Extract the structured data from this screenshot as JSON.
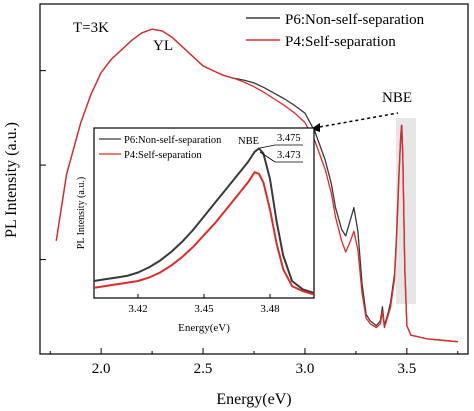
{
  "chart_data": [
    {
      "type": "line",
      "xlabel": "Energy(eV)",
      "ylabel": "PL Intensity (a.u.)",
      "xlim": [
        1.7,
        3.8
      ],
      "y_scale": "log",
      "ylim_decades": [
        0,
        3.6
      ],
      "x_ticks": [
        "2.0",
        "2.5",
        "3.0",
        "3.5"
      ],
      "annotations": {
        "temp": "T=3K",
        "yl": "YL",
        "nbe": "NBE"
      },
      "legend_position": "top-right",
      "series": [
        {
          "name": "P6:Non-self-separation",
          "color": "#3a3a3a",
          "x": [
            1.78,
            1.83,
            1.9,
            1.95,
            2.0,
            2.05,
            2.1,
            2.15,
            2.2,
            2.25,
            2.3,
            2.35,
            2.4,
            2.45,
            2.5,
            2.55,
            2.6,
            2.65,
            2.7,
            2.75,
            2.8,
            2.85,
            2.9,
            2.95,
            3.0,
            3.05,
            3.1,
            3.13,
            3.15,
            3.18,
            3.2,
            3.22,
            3.24,
            3.26,
            3.28,
            3.3,
            3.32,
            3.35,
            3.37,
            3.38,
            3.39,
            3.41,
            3.42,
            3.44,
            3.45,
            3.46,
            3.47,
            3.475,
            3.48,
            3.49,
            3.5,
            3.52,
            3.56,
            3.6,
            3.65,
            3.7,
            3.75
          ],
          "y": [
            1.2,
            1.9,
            2.45,
            2.75,
            2.98,
            3.12,
            3.22,
            3.32,
            3.4,
            3.44,
            3.42,
            3.35,
            3.25,
            3.15,
            3.05,
            3.0,
            2.95,
            2.92,
            2.9,
            2.87,
            2.82,
            2.76,
            2.7,
            2.63,
            2.55,
            2.35,
            2.05,
            1.8,
            1.55,
            1.32,
            1.25,
            1.4,
            1.55,
            1.3,
            0.75,
            0.42,
            0.35,
            0.3,
            0.35,
            0.5,
            0.3,
            0.45,
            0.55,
            0.85,
            1.3,
            1.85,
            2.3,
            2.42,
            2.1,
            0.9,
            0.3,
            0.2,
            0.18,
            0.16,
            0.15,
            0.14,
            0.13
          ]
        },
        {
          "name": "P4:Self-separation",
          "color": "#e02a2a",
          "x": [
            1.78,
            1.83,
            1.9,
            1.95,
            2.0,
            2.05,
            2.1,
            2.15,
            2.2,
            2.25,
            2.3,
            2.35,
            2.4,
            2.45,
            2.5,
            2.55,
            2.6,
            2.65,
            2.7,
            2.75,
            2.8,
            2.85,
            2.9,
            2.95,
            3.0,
            3.05,
            3.1,
            3.13,
            3.15,
            3.18,
            3.2,
            3.22,
            3.24,
            3.26,
            3.28,
            3.3,
            3.32,
            3.35,
            3.37,
            3.38,
            3.39,
            3.41,
            3.42,
            3.44,
            3.45,
            3.46,
            3.47,
            3.473,
            3.48,
            3.49,
            3.5,
            3.52,
            3.56,
            3.6,
            3.65,
            3.7,
            3.75
          ],
          "y": [
            1.2,
            1.9,
            2.45,
            2.75,
            2.98,
            3.12,
            3.22,
            3.32,
            3.4,
            3.44,
            3.42,
            3.35,
            3.25,
            3.15,
            3.05,
            3.0,
            2.95,
            2.92,
            2.88,
            2.83,
            2.77,
            2.7,
            2.63,
            2.55,
            2.45,
            2.25,
            1.95,
            1.7,
            1.45,
            1.2,
            1.08,
            1.18,
            1.3,
            1.1,
            0.65,
            0.38,
            0.32,
            0.28,
            0.32,
            0.45,
            0.28,
            0.42,
            0.5,
            0.8,
            1.25,
            1.8,
            2.3,
            2.42,
            2.1,
            0.9,
            0.3,
            0.2,
            0.18,
            0.16,
            0.15,
            0.14,
            0.13
          ]
        }
      ]
    },
    {
      "type": "line",
      "xlabel": "Energy(eV)",
      "ylabel": "PL Intensity (a.u.)",
      "xlim": [
        3.4,
        3.5
      ],
      "ylim": [
        0,
        1
      ],
      "x_ticks": [
        "3.42",
        "3.45",
        "3.48"
      ],
      "annotations": {
        "nbe": "NBE",
        "peak1": "3.475",
        "peak2": "3.473"
      },
      "legend_position": "top-left",
      "series": [
        {
          "name": "P6:Non-self-separation",
          "color": "#3a3a3a",
          "x": [
            3.4,
            3.405,
            3.41,
            3.415,
            3.42,
            3.425,
            3.43,
            3.435,
            3.44,
            3.445,
            3.45,
            3.455,
            3.46,
            3.465,
            3.47,
            3.473,
            3.475,
            3.477,
            3.48,
            3.483,
            3.486,
            3.49,
            3.495,
            3.5
          ],
          "y": [
            0.1,
            0.11,
            0.12,
            0.13,
            0.15,
            0.18,
            0.22,
            0.27,
            0.33,
            0.4,
            0.48,
            0.56,
            0.64,
            0.72,
            0.8,
            0.86,
            0.88,
            0.85,
            0.7,
            0.45,
            0.25,
            0.1,
            0.05,
            0.03
          ]
        },
        {
          "name": "P4:Self-separation",
          "color": "#e02a2a",
          "x": [
            3.4,
            3.405,
            3.41,
            3.415,
            3.42,
            3.425,
            3.43,
            3.435,
            3.44,
            3.445,
            3.45,
            3.455,
            3.46,
            3.465,
            3.47,
            3.473,
            3.475,
            3.477,
            3.48,
            3.483,
            3.486,
            3.49,
            3.495,
            3.5
          ],
          "y": [
            0.06,
            0.07,
            0.08,
            0.09,
            0.1,
            0.12,
            0.15,
            0.19,
            0.24,
            0.3,
            0.37,
            0.44,
            0.52,
            0.6,
            0.68,
            0.74,
            0.73,
            0.68,
            0.52,
            0.32,
            0.17,
            0.07,
            0.04,
            0.02
          ]
        }
      ]
    }
  ]
}
